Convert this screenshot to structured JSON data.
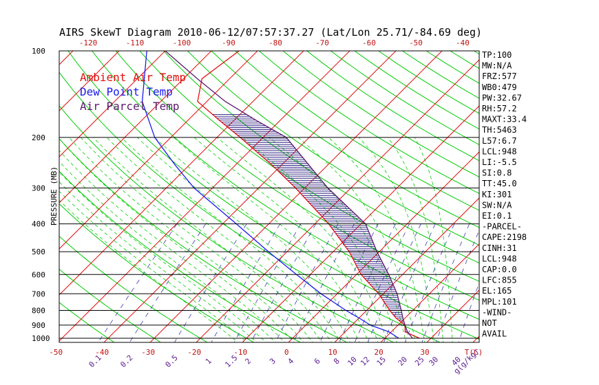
{
  "chart_data": {
    "type": "skewt",
    "title": "AIRS SkewT Diagram 2010-06-12/07:57:37.27 (Lat/Lon 25.71/-84.69 deg)",
    "ylabel": "PRESSURE (MB)",
    "xlabel": "T(C)",
    "mixing_ratio_label": "g(g/kg)",
    "pressure_ticks": [
      100,
      200,
      300,
      400,
      500,
      600,
      700,
      800,
      900,
      1000
    ],
    "temp_ticks_bottom": [
      -50,
      -40,
      -30,
      -20,
      -10,
      0,
      10,
      20,
      30
    ],
    "temp_ticks_top": [
      -120,
      -110,
      -100,
      -90,
      -80,
      -70,
      -60,
      -50,
      -40
    ],
    "mixing_ratio_ticks": [
      "0.1",
      "0.2",
      "0.5",
      "1",
      "1.5",
      "2",
      "3",
      "4",
      "6",
      "8",
      "10",
      "12",
      "15",
      "20",
      "25",
      "30",
      "40"
    ],
    "legend": [
      {
        "name": "Ambient Air Temp",
        "color": "#e01010"
      },
      {
        "name": "Dew Point Temp",
        "color": "#1a1aee"
      },
      {
        "name": "Air Parcel Temp",
        "color": "#5a1a6e"
      }
    ],
    "series": [
      {
        "name": "Ambient Air Temp",
        "color": "#e01010",
        "points": [
          [
            1000,
            27.5
          ],
          [
            950,
            23.0
          ],
          [
            900,
            21.5
          ],
          [
            850,
            18.0
          ],
          [
            800,
            15.0
          ],
          [
            700,
            9.0
          ],
          [
            600,
            1.0
          ],
          [
            500,
            -6.5
          ],
          [
            400,
            -17.0
          ],
          [
            300,
            -32.0
          ],
          [
            250,
            -42.0
          ],
          [
            200,
            -55.0
          ],
          [
            175,
            -63.0
          ],
          [
            150,
            -72.0
          ],
          [
            125,
            -76.0
          ],
          [
            100,
            -74.0
          ]
        ]
      },
      {
        "name": "Dew Point Temp",
        "color": "#1a1aee",
        "points": [
          [
            1000,
            23.0
          ],
          [
            950,
            19.5
          ],
          [
            900,
            14.0
          ],
          [
            850,
            10.0
          ],
          [
            800,
            5.5
          ],
          [
            700,
            -3.5
          ],
          [
            600,
            -13.0
          ],
          [
            500,
            -24.0
          ],
          [
            400,
            -37.0
          ],
          [
            300,
            -54.0
          ],
          [
            250,
            -63.0
          ],
          [
            200,
            -73.5
          ],
          [
            150,
            -84.0
          ],
          [
            100,
            -94.0
          ]
        ]
      },
      {
        "name": "Air Parcel Temp",
        "color": "#5a1a6e",
        "points": [
          [
            1000,
            26.0
          ],
          [
            950,
            23.5
          ],
          [
            900,
            21.5
          ],
          [
            850,
            19.5
          ],
          [
            800,
            17.5
          ],
          [
            700,
            13.0
          ],
          [
            600,
            7.0
          ],
          [
            500,
            -0.5
          ],
          [
            400,
            -9.0
          ],
          [
            300,
            -25.0
          ],
          [
            250,
            -34.0
          ],
          [
            200,
            -45.0
          ],
          [
            175,
            -55.0
          ],
          [
            150,
            -66.0
          ],
          [
            125,
            -77.0
          ],
          [
            100,
            -90.0
          ]
        ]
      }
    ],
    "indices": [
      "TP:100",
      "MW:N/A",
      "FRZ:577",
      "WB0:479",
      "PW:32.67",
      "RH:57.2",
      "MAXT:33.4",
      "TH:5463",
      "L57:6.7",
      "LCL:948",
      "LI:-5.5",
      "SI:0.8",
      "TT:45.0",
      "KI:301",
      "SW:N/A",
      "EI:0.1",
      "-PARCEL-",
      "CAPE:2198",
      "CINH:31",
      "LCL:948",
      "CAP:0.0",
      "LFC:855",
      "EL:165",
      "MPL:101",
      "-WIND-",
      "NOT",
      "AVAIL"
    ],
    "colors": {
      "isotherm": "#e01010",
      "dry_adiabat": "#00cc00",
      "moist_adiabat": "#00cc00",
      "mixing_ratio": "#3a3ab0",
      "isobar": "#000000",
      "cape_hatch": "#2a1a7e",
      "temp_tick_label": "#c01010",
      "mixing_tick_label": "#5a1a8e"
    }
  }
}
